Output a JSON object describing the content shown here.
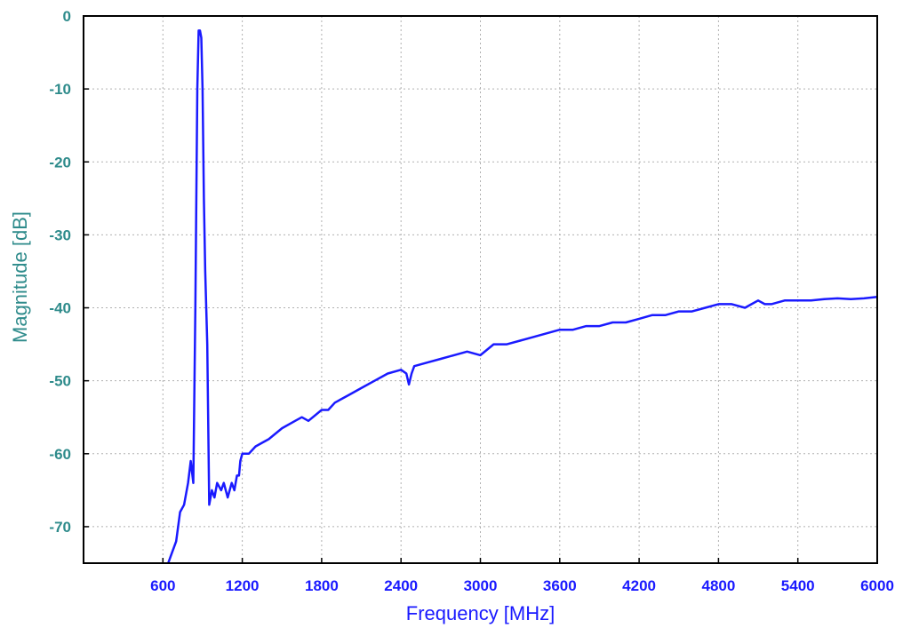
{
  "chart_data": {
    "type": "line",
    "title": "",
    "xlabel": "Frequency [MHz]",
    "ylabel": "Magnitude [dB]",
    "xlim": [
      0,
      6000
    ],
    "ylim": [
      -75,
      0
    ],
    "x_ticks": [
      600,
      1200,
      1800,
      2400,
      3000,
      3600,
      4200,
      4800,
      5400,
      6000
    ],
    "x_tick_labels": [
      "600",
      "1200",
      "1800",
      "2400",
      "3000",
      "3600",
      "4200",
      "4800",
      "5400",
      "6000"
    ],
    "y_ticks": [
      0,
      -10,
      -20,
      -30,
      -40,
      -50,
      -60,
      -70
    ],
    "y_tick_labels": [
      "0",
      "-10",
      "-20",
      "-30",
      "-40",
      "-50",
      "-60",
      "-70"
    ],
    "grid": true,
    "legend": "none",
    "series": [
      {
        "color": "#1a1aff",
        "x": [
          620,
          660,
          700,
          730,
          760,
          790,
          810,
          830,
          845,
          860,
          870,
          880,
          890,
          900,
          910,
          920,
          935,
          950,
          970,
          990,
          1010,
          1040,
          1060,
          1090,
          1120,
          1140,
          1160,
          1175,
          1185,
          1200,
          1250,
          1300,
          1350,
          1400,
          1500,
          1600,
          1650,
          1700,
          1800,
          1850,
          1900,
          2000,
          2100,
          2200,
          2300,
          2400,
          2440,
          2460,
          2480,
          2500,
          2600,
          2700,
          2800,
          2900,
          3000,
          3100,
          3200,
          3300,
          3400,
          3500,
          3600,
          3700,
          3800,
          3900,
          4000,
          4100,
          4200,
          4300,
          4400,
          4500,
          4600,
          4700,
          4800,
          4900,
          5000,
          5050,
          5100,
          5150,
          5200,
          5300,
          5400,
          5500,
          5600,
          5700,
          5800,
          5900,
          6000
        ],
        "y": [
          -76,
          -74,
          -72,
          -68,
          -67,
          -64,
          -61,
          -64,
          -40,
          -10,
          -2,
          -2,
          -3,
          -10,
          -25,
          -35,
          -45,
          -67,
          -65,
          -66,
          -64,
          -65,
          -64,
          -66,
          -64,
          -65,
          -63,
          -63,
          -61,
          -60,
          -60,
          -59,
          -58.5,
          -58,
          -56.5,
          -55.5,
          -55,
          -55.5,
          -54,
          -54,
          -53,
          -52,
          -51,
          -50,
          -49,
          -48.5,
          -49,
          -50.5,
          -49,
          -48,
          -47.5,
          -47,
          -46.5,
          -46,
          -46.5,
          -45,
          -45,
          -44.5,
          -44,
          -43.5,
          -43,
          -43,
          -42.5,
          -42.5,
          -42,
          -42,
          -41.5,
          -41,
          -41,
          -40.5,
          -40.5,
          -40,
          -39.5,
          -39.5,
          -40,
          -39.5,
          -39,
          -39.5,
          -39.5,
          -39,
          -39,
          -39,
          -38.8,
          -38.7,
          -38.8,
          -38.7,
          -38.5
        ]
      }
    ]
  },
  "colors": {
    "tick_label": "#1a1aff",
    "y_tick_label": "#2e8b8b",
    "y_axis_label": "#2e8b8b",
    "x_axis_label": "#1a1aff",
    "grid": "#b0b0b0",
    "axis": "#000000"
  }
}
